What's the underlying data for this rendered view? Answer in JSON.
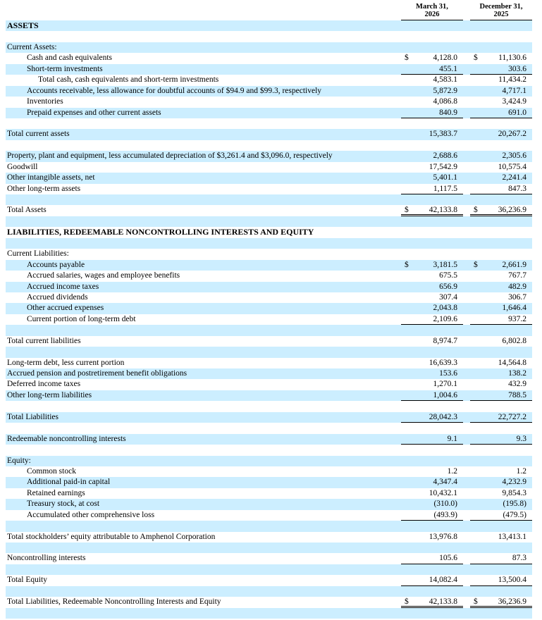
{
  "document": {
    "type": "balance-sheet",
    "currency_symbol": "$",
    "colors": {
      "row_highlight": "#cceeff",
      "text": "#000000",
      "rule": "#000000"
    },
    "columns": [
      {
        "line1": "March 31,",
        "line2": "2026"
      },
      {
        "line1": "December 31,",
        "line2": "2025"
      }
    ],
    "rows": [
      {
        "label": "ASSETS",
        "style": "section"
      },
      {
        "blank": true
      },
      {
        "label": "Current Assets:",
        "indent": 0
      },
      {
        "label": "Cash and cash equivalents",
        "indent": 1,
        "dollar": true,
        "v1": "4,128.0",
        "v2": "11,130.6"
      },
      {
        "label": "Short-term investments",
        "indent": 1,
        "v1": "455.1",
        "v2": "303.6",
        "underline": "single"
      },
      {
        "label": "Total cash, cash equivalents and short-term investments",
        "indent": 2,
        "v1": "4,583.1",
        "v2": "11,434.2"
      },
      {
        "label": "Accounts receivable, less allowance for doubtful accounts of $94.9 and $99.3, respectively",
        "indent": 1,
        "v1": "5,872.9",
        "v2": "4,717.1"
      },
      {
        "label": "Inventories",
        "indent": 1,
        "v1": "4,086.8",
        "v2": "3,424.9"
      },
      {
        "label": "Prepaid expenses and other current assets",
        "indent": 1,
        "v1": "840.9",
        "v2": "691.0",
        "underline": "single"
      },
      {
        "blank": true
      },
      {
        "label": "Total current assets",
        "indent": 0,
        "v1": "15,383.7",
        "v2": "20,267.2"
      },
      {
        "blank": true
      },
      {
        "label": "Property, plant and equipment, less accumulated depreciation of $3,261.4 and $3,096.0, respectively",
        "indent": 0,
        "v1": "2,688.6",
        "v2": "2,305.6"
      },
      {
        "label": "Goodwill",
        "indent": 0,
        "v1": "17,542.9",
        "v2": "10,575.4"
      },
      {
        "label": "Other intangible assets, net",
        "indent": 0,
        "v1": "5,401.1",
        "v2": "2,241.4"
      },
      {
        "label": "Other long-term assets",
        "indent": 0,
        "v1": "1,117.5",
        "v2": "847.3",
        "underline": "single"
      },
      {
        "blank": true
      },
      {
        "label": "Total Assets",
        "indent": 0,
        "dollar": true,
        "v1": "42,133.8",
        "v2": "36,236.9",
        "underline": "double"
      },
      {
        "blank": true
      },
      {
        "label": "LIABILITIES, REDEEMABLE NONCONTROLLING INTERESTS AND EQUITY",
        "style": "section"
      },
      {
        "blank": true
      },
      {
        "label": "Current Liabilities:",
        "indent": 0
      },
      {
        "label": "Accounts payable",
        "indent": 1,
        "dollar": true,
        "v1": "3,181.5",
        "v2": "2,661.9"
      },
      {
        "label": "Accrued salaries, wages and employee benefits",
        "indent": 1,
        "v1": "675.5",
        "v2": "767.7"
      },
      {
        "label": "Accrued income taxes",
        "indent": 1,
        "v1": "656.9",
        "v2": "482.9"
      },
      {
        "label": "Accrued dividends",
        "indent": 1,
        "v1": "307.4",
        "v2": "306.7"
      },
      {
        "label": "Other accrued expenses",
        "indent": 1,
        "v1": "2,043.8",
        "v2": "1,646.4"
      },
      {
        "label": "Current portion of long-term debt",
        "indent": 1,
        "v1": "2,109.6",
        "v2": "937.2",
        "underline": "single"
      },
      {
        "blank": true
      },
      {
        "label": "Total current liabilities",
        "indent": 0,
        "v1": "8,974.7",
        "v2": "6,802.8"
      },
      {
        "blank": true
      },
      {
        "label": "Long-term debt, less current portion",
        "indent": 0,
        "v1": "16,639.3",
        "v2": "14,564.8"
      },
      {
        "label": "Accrued pension and postretirement benefit obligations",
        "indent": 0,
        "v1": "153.6",
        "v2": "138.2"
      },
      {
        "label": "Deferred income taxes",
        "indent": 0,
        "v1": "1,270.1",
        "v2": "432.9"
      },
      {
        "label": "Other long-term liabilities",
        "indent": 0,
        "v1": "1,004.6",
        "v2": "788.5",
        "underline": "single"
      },
      {
        "blank": true
      },
      {
        "label": "Total Liabilities",
        "indent": 0,
        "v1": "28,042.3",
        "v2": "22,727.2",
        "underline": "single"
      },
      {
        "blank": true
      },
      {
        "label": "Redeemable noncontrolling interests",
        "indent": 0,
        "v1": "9.1",
        "v2": "9.3",
        "underline": "single"
      },
      {
        "blank": true
      },
      {
        "label": "Equity:",
        "indent": 0
      },
      {
        "label": "Common stock",
        "indent": 1,
        "v1": "1.2",
        "v2": "1.2"
      },
      {
        "label": "Additional paid-in capital",
        "indent": 1,
        "v1": "4,347.4",
        "v2": "4,232.9"
      },
      {
        "label": "Retained earnings",
        "indent": 1,
        "v1": "10,432.1",
        "v2": "9,854.3"
      },
      {
        "label": "Treasury stock, at cost",
        "indent": 1,
        "v1": "(310.0)",
        "v2": "(195.8)"
      },
      {
        "label": "Accumulated other comprehensive loss",
        "indent": 1,
        "v1": "(493.9)",
        "v2": "(479.5)",
        "underline": "single"
      },
      {
        "blank": true
      },
      {
        "label": "Total stockholders’ equity attributable to Amphenol Corporation",
        "indent": 0,
        "v1": "13,976.8",
        "v2": "13,413.1"
      },
      {
        "blank": true
      },
      {
        "label": "Noncontrolling interests",
        "indent": 0,
        "v1": "105.6",
        "v2": "87.3",
        "underline": "single"
      },
      {
        "blank": true
      },
      {
        "label": "Total Equity",
        "indent": 0,
        "v1": "14,082.4",
        "v2": "13,500.4",
        "underline": "single"
      },
      {
        "blank": true
      },
      {
        "label": "Total Liabilities, Redeemable Noncontrolling Interests and Equity",
        "indent": 0,
        "dollar": true,
        "v1": "42,133.8",
        "v2": "36,236.9",
        "underline": "double"
      },
      {
        "blank": true
      }
    ]
  }
}
